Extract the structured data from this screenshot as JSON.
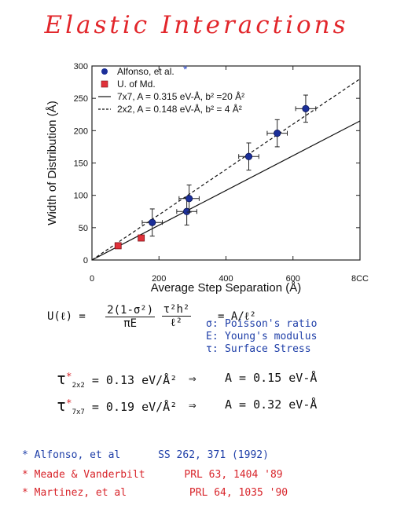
{
  "title": "Elastic Interactions",
  "chart_data": {
    "type": "scatter",
    "xlabel": "Average Step Separation (Å)",
    "ylabel": "Width of Distribution (Å)",
    "xlim": [
      0,
      800
    ],
    "ylim": [
      0,
      300
    ],
    "xticks": [
      "0",
      "200",
      "400",
      "600",
      "8CC"
    ],
    "yticks": [
      "0",
      "50",
      "100",
      "150",
      "200",
      "250",
      "300"
    ],
    "legend_position": "top-left",
    "series": [
      {
        "name": "Alfonso, et al.",
        "marker": "circle",
        "color": "#1b2f99",
        "points": [
          {
            "x": 180,
            "y": 58,
            "xerr": 30,
            "yerr": 21
          },
          {
            "x": 283,
            "y": 75,
            "xerr": 30,
            "yerr": 21
          },
          {
            "x": 290,
            "y": 95,
            "xerr": 30,
            "yerr": 21
          },
          {
            "x": 468,
            "y": 160,
            "xerr": 30,
            "yerr": 21
          },
          {
            "x": 553,
            "y": 196,
            "xerr": 30,
            "yerr": 21
          },
          {
            "x": 638,
            "y": 234,
            "xerr": 30,
            "yerr": 21
          }
        ]
      },
      {
        "name": "U. of Md.",
        "marker": "square",
        "color": "#e0313a",
        "points": [
          {
            "x": 78,
            "y": 22
          },
          {
            "x": 147,
            "y": 34
          }
        ]
      },
      {
        "name": "7x7, A = 0.315 eV-Å, b² =20 Å²",
        "style": "solid",
        "line": [
          [
            0,
            0
          ],
          [
            800,
            215
          ]
        ]
      },
      {
        "name": "2x2, A = 0.148 eV-Å, b² = 4 Å²",
        "style": "dashed",
        "line": [
          [
            0,
            0
          ],
          [
            800,
            280
          ]
        ]
      }
    ],
    "legend_star": "*"
  },
  "notes": {
    "formula_lhs": "U(ℓ) =",
    "formula_num": "2(1-σ²)",
    "formula_den": "πE",
    "formula_num2": "τ²h²",
    "formula_den2": "ℓ²",
    "formula_rhs": "= A/ℓ²",
    "defs": [
      {
        "sym": "σ:",
        "text": "Poisson's ratio"
      },
      {
        "sym": "E:",
        "text": "Young's modulus"
      },
      {
        "sym": "τ:",
        "text": "Surface Stress"
      }
    ],
    "tau_rows": [
      {
        "tau": "τ",
        "star": "*",
        "sub": "2x2",
        "value": "= 0.13 eV/Å²",
        "arrow": "⇒",
        "result": "A = 0.15 eV-Å"
      },
      {
        "tau": "τ",
        "star": "*",
        "sub": "7x7",
        "value": "= 0.19 eV/Å²",
        "arrow": "⇒",
        "result": "A = 0.32 eV-Å"
      }
    ]
  },
  "refs": [
    {
      "star": "*",
      "left": "Alfonso, et al",
      "right": "SS 262, 371 (1992)",
      "color": "#1f3fa8"
    },
    {
      "star": "*",
      "left": "Meade & Vanderbilt",
      "right": "PRL 63, 1404 '89",
      "color": "#d8252b"
    },
    {
      "star": "*",
      "left": "Martinez, et al",
      "right": "PRL 64, 1035 '90",
      "color": "#d8252b"
    }
  ]
}
